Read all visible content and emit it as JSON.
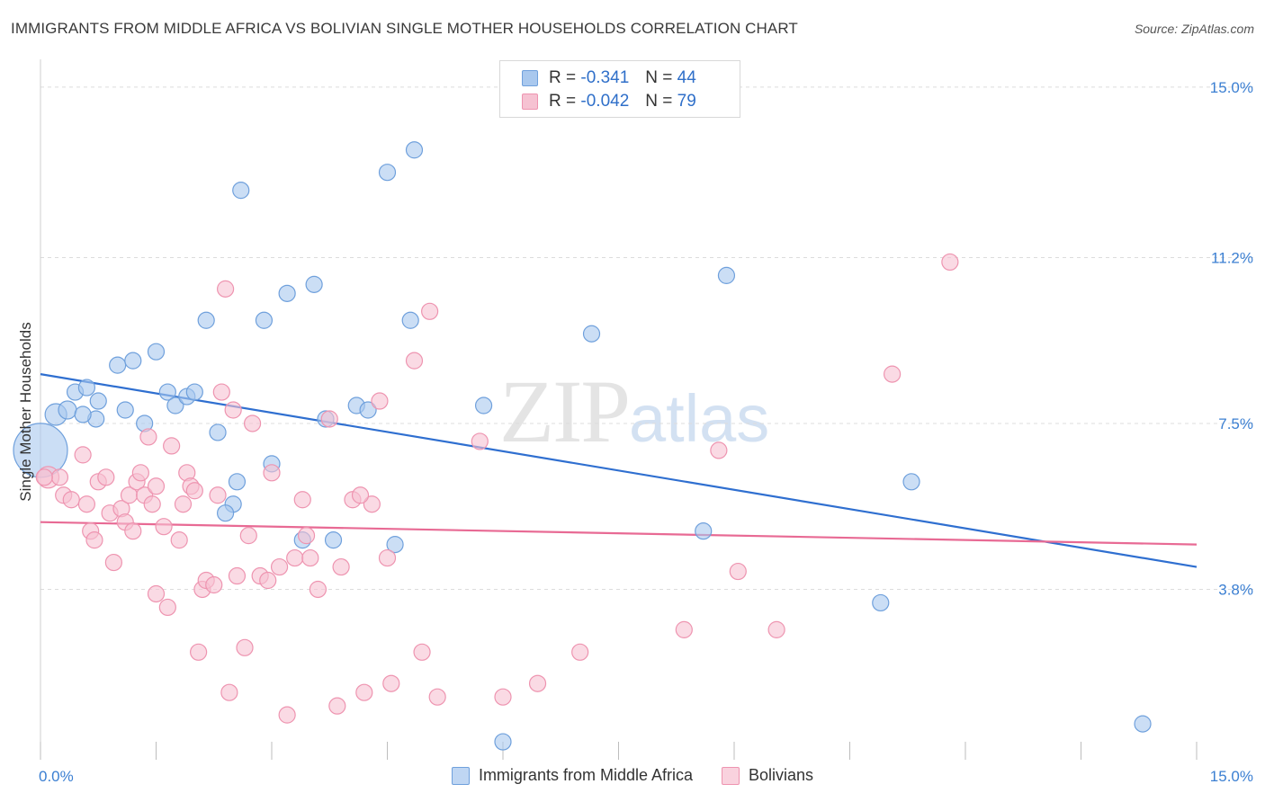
{
  "title": "IMMIGRANTS FROM MIDDLE AFRICA VS BOLIVIAN SINGLE MOTHER HOUSEHOLDS CORRELATION CHART",
  "source": "Source: ZipAtlas.com",
  "watermark": {
    "zip": "ZIP",
    "atlas": "atlas"
  },
  "legend": {
    "rows": [
      {
        "r_label": "R =",
        "r_value": "-0.341",
        "n_label": "N =",
        "n_value": "44",
        "color": "#a9c8ee",
        "border": "#6fa0dc"
      },
      {
        "r_label": "R =",
        "r_value": "-0.042",
        "n_label": "N =",
        "n_value": "79",
        "color": "#f6c2d2",
        "border": "#ee94b0"
      }
    ]
  },
  "bottom_legend": [
    {
      "label": "Immigrants from Middle Africa",
      "color": "#bfd6f3",
      "border": "#6fa0dc"
    },
    {
      "label": "Bolivians",
      "color": "#f9d2de",
      "border": "#ee94b0"
    }
  ],
  "chart_data": {
    "type": "scatter",
    "title": "IMMIGRANTS FROM MIDDLE AFRICA VS BOLIVIAN SINGLE MOTHER HOUSEHOLDS CORRELATION CHART",
    "xlabel": "",
    "ylabel": "Single Mother Households",
    "xlim": [
      0,
      15
    ],
    "ylim": [
      0,
      15.5
    ],
    "x_tick_labels": [
      "0.0%",
      "15.0%"
    ],
    "y_ticks": [
      3.8,
      7.5,
      11.2,
      15.0
    ],
    "y_tick_labels": [
      "3.8%",
      "7.5%",
      "11.2%",
      "15.0%"
    ],
    "grid": true,
    "legend_position": "top-center",
    "series": [
      {
        "name": "Immigrants from Middle Africa",
        "color": "#a9c8ee",
        "edge": "#6fa0dc",
        "line_color": "#2f6fd0",
        "trend": {
          "x": [
            0,
            15
          ],
          "y": [
            8.6,
            4.3
          ]
        },
        "points": [
          [
            0.0,
            6.9,
            30
          ],
          [
            0.2,
            7.7,
            12
          ],
          [
            0.35,
            7.8,
            10
          ],
          [
            0.45,
            8.2,
            9
          ],
          [
            0.6,
            8.3,
            9
          ],
          [
            0.75,
            8.0,
            9
          ],
          [
            0.72,
            7.6,
            9
          ],
          [
            1.0,
            8.8,
            9
          ],
          [
            1.2,
            8.9,
            9
          ],
          [
            1.1,
            7.8,
            9
          ],
          [
            1.35,
            7.5,
            9
          ],
          [
            1.5,
            9.1,
            9
          ],
          [
            1.65,
            8.2,
            9
          ],
          [
            1.75,
            7.9,
            9
          ],
          [
            1.9,
            8.1,
            9
          ],
          [
            2.0,
            8.2,
            9
          ],
          [
            2.15,
            9.8,
            9
          ],
          [
            2.3,
            7.3,
            9
          ],
          [
            2.6,
            12.7,
            9
          ],
          [
            2.55,
            6.2,
            9
          ],
          [
            2.5,
            5.7,
            9
          ],
          [
            2.4,
            5.5,
            9
          ],
          [
            2.9,
            9.8,
            9
          ],
          [
            3.0,
            6.6,
            9
          ],
          [
            3.2,
            10.4,
            9
          ],
          [
            3.4,
            4.9,
            9
          ],
          [
            3.55,
            10.6,
            9
          ],
          [
            3.7,
            7.6,
            9
          ],
          [
            3.8,
            4.9,
            9
          ],
          [
            4.1,
            7.9,
            9
          ],
          [
            4.25,
            7.8,
            9
          ],
          [
            4.5,
            13.1,
            9
          ],
          [
            4.6,
            4.8,
            9
          ],
          [
            4.8,
            9.8,
            9
          ],
          [
            4.85,
            13.6,
            9
          ],
          [
            5.75,
            7.9,
            9
          ],
          [
            6.0,
            0.4,
            9
          ],
          [
            7.15,
            9.5,
            9
          ],
          [
            8.6,
            5.1,
            9
          ],
          [
            8.9,
            10.8,
            9
          ],
          [
            10.9,
            3.5,
            9
          ],
          [
            11.3,
            6.2,
            9
          ],
          [
            14.3,
            0.8,
            9
          ],
          [
            0.55,
            7.7,
            9
          ]
        ]
      },
      {
        "name": "Bolivians",
        "color": "#f6c2d2",
        "edge": "#ee94b0",
        "line_color": "#e86a94",
        "trend": {
          "x": [
            0,
            15
          ],
          "y": [
            5.3,
            4.8
          ]
        },
        "points": [
          [
            0.1,
            6.3,
            12
          ],
          [
            0.25,
            6.3,
            9
          ],
          [
            0.3,
            5.9,
            9
          ],
          [
            0.4,
            5.8,
            9
          ],
          [
            0.55,
            6.8,
            9
          ],
          [
            0.6,
            5.7,
            9
          ],
          [
            0.65,
            5.1,
            9
          ],
          [
            0.7,
            4.9,
            9
          ],
          [
            0.75,
            6.2,
            9
          ],
          [
            0.85,
            6.3,
            9
          ],
          [
            0.9,
            5.5,
            9
          ],
          [
            0.95,
            4.4,
            9
          ],
          [
            1.05,
            5.6,
            9
          ],
          [
            1.1,
            5.3,
            9
          ],
          [
            1.15,
            5.9,
            9
          ],
          [
            1.2,
            5.1,
            9
          ],
          [
            1.25,
            6.2,
            9
          ],
          [
            1.3,
            6.4,
            9
          ],
          [
            1.35,
            5.9,
            9
          ],
          [
            1.4,
            7.2,
            9
          ],
          [
            1.45,
            5.7,
            9
          ],
          [
            1.5,
            3.7,
            9
          ],
          [
            1.6,
            5.2,
            9
          ],
          [
            1.65,
            3.4,
            9
          ],
          [
            1.7,
            7.0,
            9
          ],
          [
            1.8,
            4.9,
            9
          ],
          [
            1.85,
            5.7,
            9
          ],
          [
            1.9,
            6.4,
            9
          ],
          [
            1.95,
            6.1,
            9
          ],
          [
            2.0,
            6.0,
            9
          ],
          [
            2.05,
            2.4,
            9
          ],
          [
            2.1,
            3.8,
            9
          ],
          [
            2.15,
            4.0,
            9
          ],
          [
            2.25,
            3.9,
            9
          ],
          [
            2.3,
            5.9,
            9
          ],
          [
            2.35,
            8.2,
            9
          ],
          [
            2.4,
            10.5,
            9
          ],
          [
            2.45,
            1.5,
            9
          ],
          [
            2.5,
            7.8,
            9
          ],
          [
            2.55,
            4.1,
            9
          ],
          [
            2.65,
            2.5,
            9
          ],
          [
            2.7,
            5.0,
            9
          ],
          [
            2.75,
            7.5,
            9
          ],
          [
            2.85,
            4.1,
            9
          ],
          [
            2.95,
            4.0,
            9
          ],
          [
            3.0,
            6.4,
            9
          ],
          [
            3.1,
            4.3,
            9
          ],
          [
            3.2,
            1.0,
            9
          ],
          [
            3.3,
            4.5,
            9
          ],
          [
            3.4,
            5.8,
            9
          ],
          [
            3.45,
            5.0,
            9
          ],
          [
            3.5,
            4.5,
            9
          ],
          [
            3.6,
            3.8,
            9
          ],
          [
            3.75,
            7.6,
            9
          ],
          [
            3.85,
            1.2,
            9
          ],
          [
            3.9,
            4.3,
            9
          ],
          [
            4.05,
            5.8,
            9
          ],
          [
            4.2,
            1.5,
            9
          ],
          [
            4.3,
            5.7,
            9
          ],
          [
            4.4,
            8.0,
            9
          ],
          [
            4.5,
            4.5,
            9
          ],
          [
            4.55,
            1.7,
            9
          ],
          [
            4.85,
            8.9,
            9
          ],
          [
            4.95,
            2.4,
            9
          ],
          [
            5.05,
            10.0,
            9
          ],
          [
            5.15,
            1.4,
            9
          ],
          [
            5.7,
            7.1,
            9
          ],
          [
            6.0,
            1.4,
            9
          ],
          [
            6.45,
            1.7,
            9
          ],
          [
            7.0,
            2.4,
            9
          ],
          [
            8.35,
            2.9,
            9
          ],
          [
            8.8,
            6.9,
            9
          ],
          [
            9.05,
            4.2,
            9
          ],
          [
            9.55,
            2.9,
            9
          ],
          [
            11.05,
            8.6,
            9
          ],
          [
            11.8,
            11.1,
            9
          ],
          [
            0.05,
            6.3,
            9
          ],
          [
            1.5,
            6.1,
            9
          ],
          [
            4.15,
            5.9,
            9
          ]
        ]
      }
    ]
  }
}
